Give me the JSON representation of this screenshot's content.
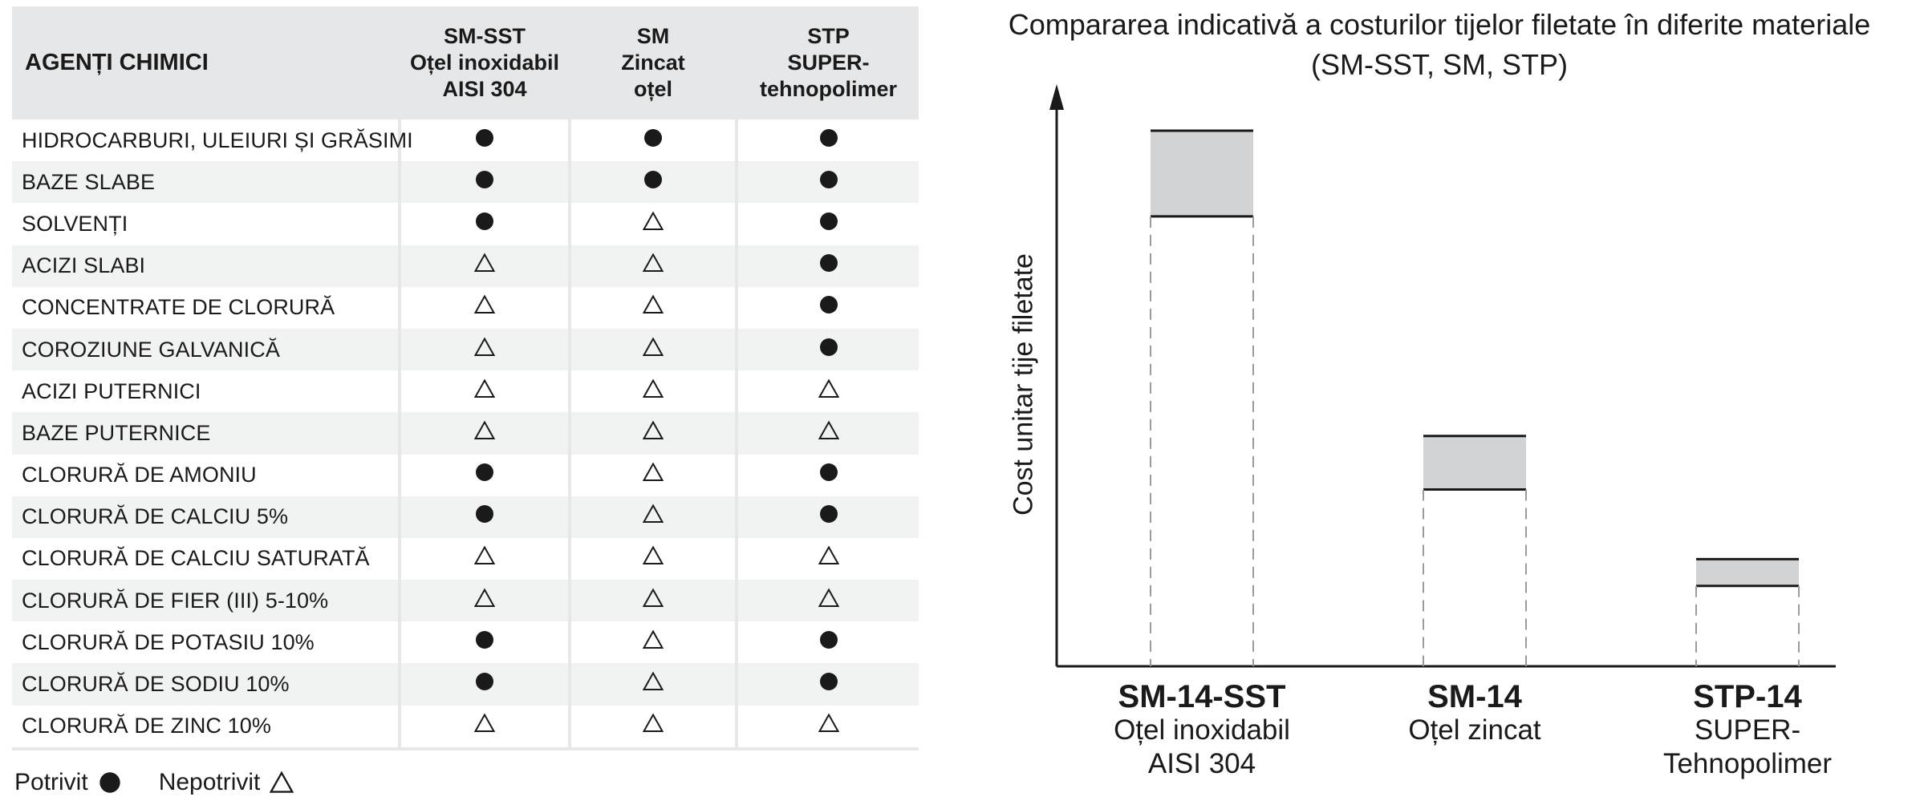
{
  "table": {
    "header": {
      "agent": "AGENȚI CHIMICI",
      "materials": [
        {
          "lines": [
            "SM-SST",
            "Oțel inoxidabil",
            "AISI 304"
          ]
        },
        {
          "lines": [
            "SM",
            "Zincat",
            "oțel"
          ]
        },
        {
          "lines": [
            "STP",
            "SUPER-",
            "tehnopolimer"
          ]
        }
      ]
    },
    "rows": [
      {
        "agent": "HIDROCARBURI, ULEIURI ȘI GRĂSIMI",
        "marks": [
          "suitable",
          "suitable",
          "suitable"
        ]
      },
      {
        "agent": "BAZE SLABE",
        "marks": [
          "suitable",
          "suitable",
          "suitable"
        ]
      },
      {
        "agent": "SOLVENȚI",
        "marks": [
          "suitable",
          "unsuitable",
          "suitable"
        ]
      },
      {
        "agent": "ACIZI SLABI",
        "marks": [
          "unsuitable",
          "unsuitable",
          "suitable"
        ]
      },
      {
        "agent": "CONCENTRATE DE CLORURĂ",
        "marks": [
          "unsuitable",
          "unsuitable",
          "suitable"
        ]
      },
      {
        "agent": "COROZIUNE GALVANICĂ",
        "marks": [
          "unsuitable",
          "unsuitable",
          "suitable"
        ]
      },
      {
        "agent": "ACIZI PUTERNICI",
        "marks": [
          "unsuitable",
          "unsuitable",
          "unsuitable"
        ]
      },
      {
        "agent": "BAZE PUTERNICE",
        "marks": [
          "unsuitable",
          "unsuitable",
          "unsuitable"
        ]
      },
      {
        "agent": "CLORURĂ DE AMONIU",
        "marks": [
          "suitable",
          "unsuitable",
          "suitable"
        ]
      },
      {
        "agent": "CLORURĂ DE CALCIU 5%",
        "marks": [
          "suitable",
          "unsuitable",
          "suitable"
        ]
      },
      {
        "agent": "CLORURĂ DE CALCIU SATURATĂ",
        "marks": [
          "unsuitable",
          "unsuitable",
          "unsuitable"
        ]
      },
      {
        "agent": "CLORURĂ DE FIER (III) 5-10%",
        "marks": [
          "unsuitable",
          "unsuitable",
          "unsuitable"
        ]
      },
      {
        "agent": "CLORURĂ DE POTASIU 10%",
        "marks": [
          "suitable",
          "unsuitable",
          "suitable"
        ]
      },
      {
        "agent": "CLORURĂ DE SODIU 10%",
        "marks": [
          "suitable",
          "unsuitable",
          "suitable"
        ]
      },
      {
        "agent": "CLORURĂ DE ZINC 10%",
        "marks": [
          "unsuitable",
          "unsuitable",
          "unsuitable"
        ]
      }
    ],
    "legend": {
      "suitable": "Potrivit",
      "unsuitable": "Nepotrivit"
    }
  },
  "chart_data": {
    "type": "bar",
    "title": [
      "Compararea indicativă a costurilor tijelor filetate în diferite materiale",
      "(SM-SST, SM, STP)"
    ],
    "ylabel": "Cost unitar tije filetate",
    "xlabel": "",
    "y_tick_labels": false,
    "grid": false,
    "categories": [
      {
        "name": "SM-14-SST",
        "sub": [
          "Oțel inoxidabil",
          "AISI 304"
        ]
      },
      {
        "name": "SM-14",
        "sub": [
          "Oțel zincat"
        ]
      },
      {
        "name": "STP-14",
        "sub": [
          "SUPER-Tehnopolimer"
        ]
      }
    ],
    "cost_range": [
      {
        "low": 0.84,
        "high": 1.0
      },
      {
        "low": 0.33,
        "high": 0.43
      },
      {
        "low": 0.15,
        "high": 0.2
      }
    ],
    "colors": {
      "range_fill": "#d1d3d4",
      "line": "#1a1a1a",
      "dash": "#9a9a9a"
    }
  }
}
